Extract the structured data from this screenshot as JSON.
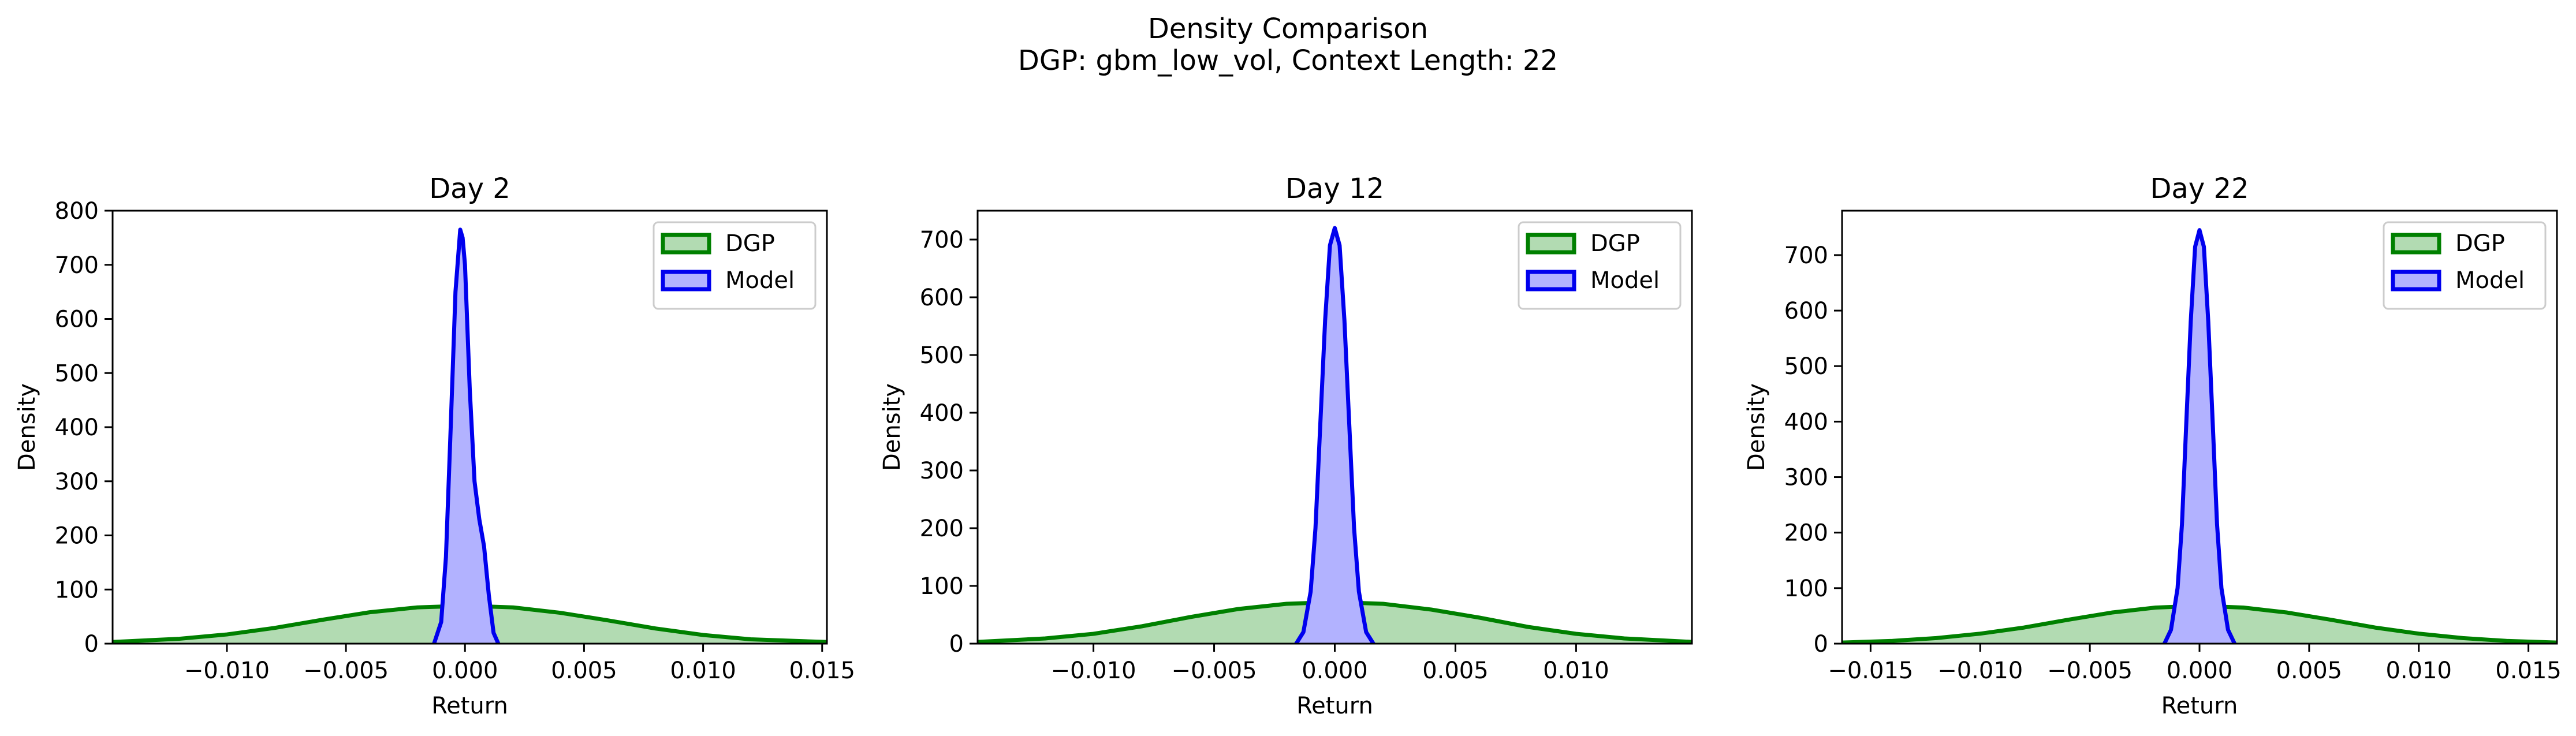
{
  "figure": {
    "title_line1": "Density Comparison",
    "title_line2": "DGP: gbm_low_vol, Context Length: 22"
  },
  "colors": {
    "dgp_line": "#008000",
    "dgp_fill": "#b2dbb2",
    "model_line": "#0000ee",
    "model_fill": "#b2b2ff"
  },
  "chart_data": [
    {
      "type": "area",
      "title": "Day 2",
      "xlabel": "Return",
      "ylabel": "Density",
      "xlim": [
        -0.0148,
        0.0152
      ],
      "ylim": [
        0,
        800
      ],
      "xticks": [
        -0.01,
        -0.005,
        0.0,
        0.005,
        0.01,
        0.015
      ],
      "xtick_labels": [
        "−0.010",
        "−0.005",
        "0.000",
        "0.005",
        "0.010",
        "0.015"
      ],
      "yticks": [
        0,
        100,
        200,
        300,
        400,
        500,
        600,
        700,
        800
      ],
      "ytick_labels": [
        "0",
        "100",
        "200",
        "300",
        "400",
        "500",
        "600",
        "700",
        "800"
      ],
      "legend": "top-right",
      "series": [
        {
          "name": "DGP",
          "color_key": "dgp",
          "x": [
            -0.0148,
            -0.012,
            -0.01,
            -0.008,
            -0.006,
            -0.004,
            -0.002,
            0.0,
            0.002,
            0.004,
            0.006,
            0.008,
            0.01,
            0.012,
            0.0152
          ],
          "y": [
            3,
            9,
            17,
            29,
            44,
            58,
            67,
            70,
            67,
            57,
            43,
            28,
            16,
            8,
            3
          ]
        },
        {
          "name": "Model",
          "color_key": "model",
          "x": [
            -0.0013,
            -0.001,
            -0.0008,
            -0.0006,
            -0.0004,
            -0.0002,
            -0.0001,
            0.0,
            0.0002,
            0.0004,
            0.0006,
            0.0008,
            0.001,
            0.0012,
            0.0014
          ],
          "y": [
            0,
            40,
            160,
            400,
            650,
            765,
            750,
            700,
            470,
            300,
            230,
            180,
            90,
            20,
            0
          ]
        }
      ]
    },
    {
      "type": "area",
      "title": "Day 12",
      "xlabel": "Return",
      "ylabel": "Density",
      "xlim": [
        -0.0148,
        0.0148
      ],
      "ylim": [
        0,
        750
      ],
      "xticks": [
        -0.01,
        -0.005,
        0.0,
        0.005,
        0.01
      ],
      "xtick_labels": [
        "−0.010",
        "−0.005",
        "0.000",
        "0.005",
        "0.010"
      ],
      "yticks": [
        0,
        100,
        200,
        300,
        400,
        500,
        600,
        700
      ],
      "ytick_labels": [
        "0",
        "100",
        "200",
        "300",
        "400",
        "500",
        "600",
        "700"
      ],
      "legend": "top-right",
      "series": [
        {
          "name": "DGP",
          "color_key": "dgp",
          "x": [
            -0.0148,
            -0.012,
            -0.01,
            -0.008,
            -0.006,
            -0.004,
            -0.002,
            0.0,
            0.002,
            0.004,
            0.006,
            0.008,
            0.01,
            0.012,
            0.0148
          ],
          "y": [
            3,
            9,
            17,
            30,
            46,
            60,
            69,
            72,
            69,
            59,
            45,
            29,
            17,
            9,
            3
          ]
        },
        {
          "name": "Model",
          "color_key": "model",
          "x": [
            -0.0016,
            -0.0013,
            -0.001,
            -0.0008,
            -0.0006,
            -0.0004,
            -0.0002,
            0.0,
            0.0002,
            0.0004,
            0.0006,
            0.0008,
            0.001,
            0.0013,
            0.0016
          ],
          "y": [
            0,
            20,
            90,
            200,
            380,
            560,
            690,
            720,
            690,
            560,
            380,
            200,
            90,
            20,
            0
          ]
        }
      ]
    },
    {
      "type": "area",
      "title": "Day 22",
      "xlabel": "Return",
      "ylabel": "Density",
      "xlim": [
        -0.0163,
        0.0163
      ],
      "ylim": [
        0,
        780
      ],
      "xticks": [
        -0.015,
        -0.01,
        -0.005,
        0.0,
        0.005,
        0.01,
        0.015
      ],
      "xtick_labels": [
        "−0.015",
        "−0.010",
        "−0.005",
        "0.000",
        "0.005",
        "0.010",
        "0.015"
      ],
      "yticks": [
        0,
        100,
        200,
        300,
        400,
        500,
        600,
        700
      ],
      "ytick_labels": [
        "0",
        "100",
        "200",
        "300",
        "400",
        "500",
        "600",
        "700"
      ],
      "legend": "top-right",
      "series": [
        {
          "name": "DGP",
          "color_key": "dgp",
          "x": [
            -0.0163,
            -0.014,
            -0.012,
            -0.01,
            -0.008,
            -0.006,
            -0.004,
            -0.002,
            0.0,
            0.002,
            0.004,
            0.006,
            0.008,
            0.01,
            0.012,
            0.014,
            0.0163
          ],
          "y": [
            2,
            5,
            10,
            18,
            29,
            43,
            56,
            65,
            68,
            65,
            56,
            43,
            29,
            18,
            10,
            5,
            2
          ]
        },
        {
          "name": "Model",
          "color_key": "model",
          "x": [
            -0.0016,
            -0.0013,
            -0.001,
            -0.0008,
            -0.0006,
            -0.0004,
            -0.0002,
            0.0,
            0.0002,
            0.0004,
            0.0006,
            0.0008,
            0.001,
            0.0013,
            0.0016
          ],
          "y": [
            0,
            25,
            100,
            215,
            400,
            580,
            715,
            745,
            715,
            580,
            400,
            215,
            100,
            25,
            0
          ]
        }
      ]
    }
  ]
}
